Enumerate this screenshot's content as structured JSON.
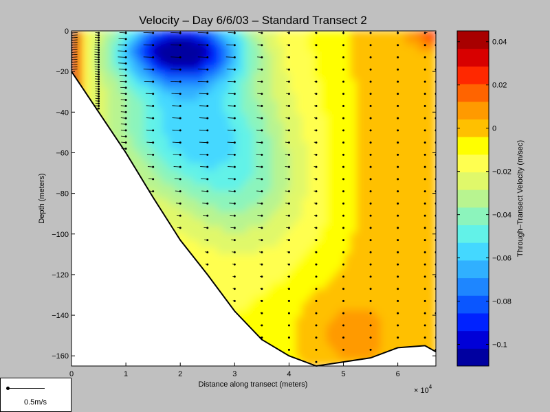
{
  "chart_data": {
    "type": "heatmap",
    "title": "Velocity – Day 6/6/03 – Standard Transect 2",
    "xlabel": "Distance along transect (meters)",
    "ylabel": "Depth (meters)",
    "x_multiplier": "× 10",
    "x_multiplier_exp": "4",
    "xlim": [
      0,
      6.7
    ],
    "ylim": [
      -165,
      0
    ],
    "x_ticks": [
      "0",
      "1",
      "2",
      "3",
      "4",
      "5",
      "6"
    ],
    "y_ticks": [
      "0",
      "−20",
      "−40",
      "−60",
      "−80",
      "−100",
      "−120",
      "−140",
      "−160"
    ],
    "colorbar": {
      "label": "Through–Transect Velocity (m/sec)",
      "range": [
        -0.11,
        0.045
      ],
      "ticks": [
        "0.04",
        "0.02",
        "0",
        "−0.02",
        "−0.04",
        "−0.06",
        "−0.08",
        "−0.1"
      ],
      "levels": [
        "#0000a0",
        "#0000d8",
        "#0022ff",
        "#0a56ff",
        "#1e86ff",
        "#30b0ff",
        "#44d8ff",
        "#62f2e8",
        "#8cf4bc",
        "#b8f490",
        "#e0f86a",
        "#ffff50",
        "#ffff00",
        "#ffc000",
        "#ff9a00",
        "#ff6400",
        "#ff2800",
        "#d80000",
        "#a80000"
      ]
    },
    "bottom_profile": [
      [
        0,
        -20
      ],
      [
        0.5,
        -40
      ],
      [
        1,
        -60
      ],
      [
        1.5,
        -82
      ],
      [
        2,
        -103
      ],
      [
        2.5,
        -120
      ],
      [
        3,
        -138
      ],
      [
        3.5,
        -152
      ],
      [
        4,
        -160
      ],
      [
        4.5,
        -165
      ],
      [
        5,
        -163
      ],
      [
        5.5,
        -161
      ],
      [
        6,
        -156
      ],
      [
        6.5,
        -155
      ],
      [
        6.7,
        -158
      ]
    ],
    "stations": [
      [
        0,
        -20
      ],
      [
        0.5,
        -40
      ],
      [
        1,
        -60
      ],
      [
        1.5,
        -82
      ],
      [
        2,
        -103
      ],
      [
        2.5,
        -120
      ],
      [
        3,
        -138
      ],
      [
        3.5,
        -152
      ],
      [
        4,
        -160
      ],
      [
        4.5,
        -165
      ],
      [
        5,
        -163
      ],
      [
        5.5,
        -161
      ],
      [
        6,
        -156
      ],
      [
        6.5,
        -155
      ],
      [
        6.7,
        -158
      ]
    ],
    "scale_vector_label": "0.5m/s"
  }
}
